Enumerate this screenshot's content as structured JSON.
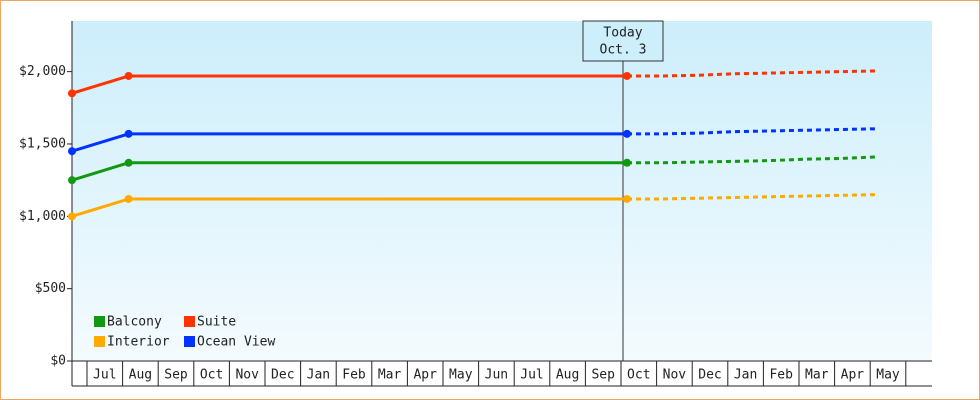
{
  "chart_data": {
    "type": "line",
    "categories": [
      "Jul",
      "Aug",
      "Sep",
      "Oct",
      "Nov",
      "Dec",
      "Jan",
      "Feb",
      "Mar",
      "Apr",
      "May",
      "Jun",
      "Jul",
      "Aug",
      "Sep",
      "Oct",
      "Nov",
      "Dec",
      "Jan",
      "Feb",
      "Mar",
      "Apr",
      "May"
    ],
    "ylim": [
      0,
      2350
    ],
    "yticks": [
      {
        "value": 0,
        "label": "$0"
      },
      {
        "value": 500,
        "label": "$500"
      },
      {
        "value": 1000,
        "label": "$1,000"
      },
      {
        "value": 1500,
        "label": "$1,500"
      },
      {
        "value": 2000,
        "label": "$2,000"
      }
    ],
    "annotation": {
      "lines": [
        "Today",
        "Oct. 3"
      ],
      "category": 15
    },
    "series": [
      {
        "name": "Balcony",
        "color": "#119911",
        "values": [
          1250,
          1370,
          1370,
          1370,
          1370,
          1370,
          1370,
          1370,
          1370,
          1370,
          1370,
          1370,
          1370,
          1370,
          1370,
          1370,
          null,
          null,
          null,
          null,
          null,
          null,
          null
        ],
        "forecast": [
          null,
          null,
          null,
          null,
          null,
          null,
          null,
          null,
          null,
          null,
          null,
          null,
          null,
          null,
          null,
          1370,
          1370,
          1375,
          1380,
          1385,
          1395,
          1400,
          1410
        ]
      },
      {
        "name": "Suite",
        "color": "#ff3300",
        "values": [
          1850,
          1970,
          1970,
          1970,
          1970,
          1970,
          1970,
          1970,
          1970,
          1970,
          1970,
          1970,
          1970,
          1970,
          1970,
          1970,
          null,
          null,
          null,
          null,
          null,
          null,
          null
        ],
        "forecast": [
          null,
          null,
          null,
          null,
          null,
          null,
          null,
          null,
          null,
          null,
          null,
          null,
          null,
          null,
          null,
          1970,
          1970,
          1975,
          1985,
          1990,
          1995,
          2000,
          2005
        ]
      },
      {
        "name": "Interior",
        "color": "#ffaa00",
        "values": [
          1000,
          1120,
          1120,
          1120,
          1120,
          1120,
          1120,
          1120,
          1120,
          1120,
          1120,
          1120,
          1120,
          1120,
          1120,
          1120,
          null,
          null,
          null,
          null,
          null,
          null,
          null
        ],
        "forecast": [
          null,
          null,
          null,
          null,
          null,
          null,
          null,
          null,
          null,
          null,
          null,
          null,
          null,
          null,
          null,
          1120,
          1120,
          1125,
          1130,
          1135,
          1140,
          1145,
          1150
        ]
      },
      {
        "name": "Ocean View",
        "color": "#0033ff",
        "values": [
          1450,
          1570,
          1570,
          1570,
          1570,
          1570,
          1570,
          1570,
          1570,
          1570,
          1570,
          1570,
          1570,
          1570,
          1570,
          1570,
          null,
          null,
          null,
          null,
          null,
          null,
          null
        ],
        "forecast": [
          null,
          null,
          null,
          null,
          null,
          null,
          null,
          null,
          null,
          null,
          null,
          null,
          null,
          null,
          null,
          1570,
          1570,
          1575,
          1585,
          1590,
          1595,
          1600,
          1605
        ]
      }
    ]
  }
}
